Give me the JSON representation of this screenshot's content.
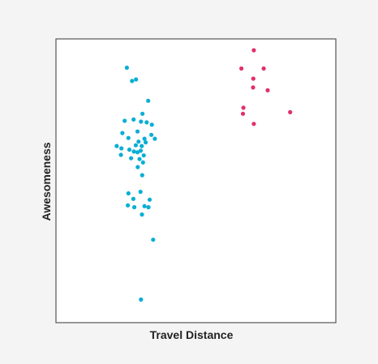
{
  "chart_data": {
    "type": "scatter",
    "title": "",
    "xlabel": "Travel Distance",
    "ylabel": "Awesomeness",
    "xlim": [
      0,
      100
    ],
    "ylim": [
      0,
      100
    ],
    "grid": false,
    "legend": "none",
    "series": [
      {
        "color": "#0aaed4",
        "points": [
          [
            18.5,
            93.3
          ],
          [
            20.6,
            88.2
          ],
          [
            22.2,
            88.8
          ],
          [
            27.1,
            80.6
          ],
          [
            24.8,
            75.6
          ],
          [
            21.2,
            73.4
          ],
          [
            17.6,
            72.9
          ],
          [
            24.2,
            72.6
          ],
          [
            26.5,
            72.3
          ],
          [
            28.6,
            71.4
          ],
          [
            22.8,
            68.8
          ],
          [
            16.7,
            68.2
          ],
          [
            28.4,
            67.5
          ],
          [
            19.1,
            66.3
          ],
          [
            25.6,
            66.0
          ],
          [
            29.8,
            66.0
          ],
          [
            23.2,
            64.9
          ],
          [
            14.4,
            63.2
          ],
          [
            26.1,
            64.6
          ],
          [
            22.1,
            63.5
          ],
          [
            24.5,
            63.2
          ],
          [
            16.3,
            62.3
          ],
          [
            19.5,
            61.8
          ],
          [
            24.1,
            61.4
          ],
          [
            21.3,
            61.1
          ],
          [
            22.8,
            60.8
          ],
          [
            16.1,
            59.8
          ],
          [
            25.3,
            59.6
          ],
          [
            20.2,
            58.5
          ],
          [
            23.6,
            58.2
          ],
          [
            25.0,
            56.9
          ],
          [
            22.9,
            55.1
          ],
          [
            24.7,
            52.0
          ],
          [
            19.1,
            45.0
          ],
          [
            24.0,
            45.6
          ],
          [
            21.1,
            42.9
          ],
          [
            27.7,
            42.6
          ],
          [
            18.9,
            40.4
          ],
          [
            21.5,
            39.7
          ],
          [
            25.6,
            40.1
          ],
          [
            27.2,
            39.7
          ],
          [
            24.6,
            36.9
          ],
          [
            29.1,
            27.2
          ],
          [
            24.2,
            4.2
          ]
        ]
      },
      {
        "color": "#e0306a",
        "points": [
          [
            69.8,
            100.0
          ],
          [
            64.8,
            93.0
          ],
          [
            73.8,
            93.0
          ],
          [
            69.6,
            89.1
          ],
          [
            69.5,
            85.7
          ],
          [
            75.4,
            84.6
          ],
          [
            65.6,
            77.9
          ],
          [
            65.4,
            75.6
          ],
          [
            84.5,
            76.2
          ],
          [
            69.8,
            71.7
          ]
        ]
      }
    ]
  }
}
